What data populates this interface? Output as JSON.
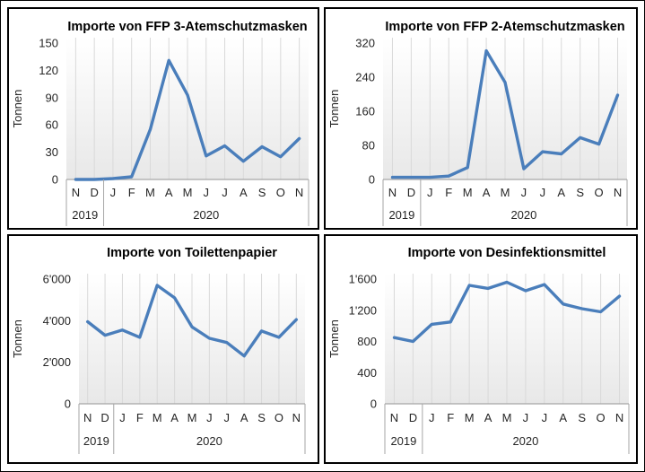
{
  "window": {
    "background": "#ffffff",
    "outer_border_color": "#000000",
    "panel_border_color": "#000000"
  },
  "palette": {
    "line_blue": "#4a7ebb",
    "gridline_gray": "#d9d9d9",
    "axis_gray": "#a6a6a6",
    "plot_gradient_bottom": "#e8e8e8"
  },
  "chart_data": [
    {
      "type": "line",
      "title": "Importe von FFP 3-Atemschutzmasken",
      "ylabel": "Tonnen",
      "ylabel_color": "#262626",
      "categories": [
        "N",
        "D",
        "J",
        "F",
        "M",
        "A",
        "M",
        "J",
        "J",
        "A",
        "S",
        "O",
        "N"
      ],
      "year_groups": [
        {
          "label": "2019",
          "span": 2
        },
        {
          "label": "2020",
          "span": 11
        }
      ],
      "values": [
        0,
        0,
        1,
        3,
        55,
        131,
        93,
        26,
        37,
        20,
        36,
        25,
        45
      ],
      "yticks": [
        0,
        30,
        60,
        90,
        120,
        150
      ],
      "ytick_labels": [
        "0",
        "30",
        "60",
        "90",
        "120",
        "150"
      ],
      "ylim": [
        0,
        150
      ],
      "grid": "vertical-category-lines",
      "legend": "none",
      "line_color": "#4a7ebb"
    },
    {
      "type": "line",
      "title": "Importe von FFP 2-Atemschutzmasken",
      "ylabel": "Tonnen",
      "ylabel_color": "#262626",
      "categories": [
        "N",
        "D",
        "J",
        "F",
        "M",
        "A",
        "M",
        "J",
        "J",
        "A",
        "S",
        "O",
        "N"
      ],
      "year_groups": [
        {
          "label": "2019",
          "span": 2
        },
        {
          "label": "2020",
          "span": 11
        }
      ],
      "values": [
        5,
        5,
        5,
        8,
        28,
        302,
        228,
        25,
        65,
        60,
        98,
        83,
        198
      ],
      "yticks": [
        0,
        80,
        160,
        240,
        320
      ],
      "ytick_labels": [
        "0",
        "80",
        "160",
        "240",
        "320"
      ],
      "ylim": [
        0,
        320
      ],
      "grid": "vertical-category-lines",
      "legend": "none",
      "line_color": "#4a7ebb"
    },
    {
      "type": "line",
      "title": "Importe von Toilettenpapier",
      "ylabel": "Tonnen",
      "ylabel_color": "#262626",
      "categories": [
        "N",
        "D",
        "J",
        "F",
        "M",
        "A",
        "M",
        "J",
        "J",
        "A",
        "S",
        "O",
        "N"
      ],
      "year_groups": [
        {
          "label": "2019",
          "span": 2
        },
        {
          "label": "2020",
          "span": 11
        }
      ],
      "values": [
        3950,
        3300,
        3550,
        3200,
        5700,
        5100,
        3700,
        3150,
        2950,
        2300,
        3500,
        3200,
        4050
      ],
      "yticks": [
        0,
        2000,
        4000,
        6000
      ],
      "ytick_labels": [
        "0",
        "2'000",
        "4'000",
        "6'000"
      ],
      "ylim": [
        0,
        6000
      ],
      "grid": "vertical-category-lines",
      "legend": "none",
      "line_color": "#4a7ebb"
    },
    {
      "type": "line",
      "title": "Importe von Desinfektionsmittel",
      "ylabel": "Tonnen",
      "ylabel_color": "#a6a6a6",
      "categories": [
        "N",
        "D",
        "J",
        "F",
        "M",
        "A",
        "M",
        "J",
        "J",
        "A",
        "S",
        "O",
        "N"
      ],
      "year_groups": [
        {
          "label": "2019",
          "span": 2
        },
        {
          "label": "2020",
          "span": 11
        }
      ],
      "values": [
        850,
        800,
        1020,
        1050,
        1520,
        1480,
        1560,
        1450,
        1530,
        1280,
        1220,
        1180,
        1380
      ],
      "yticks": [
        0,
        400,
        800,
        1200,
        1600
      ],
      "ytick_labels": [
        "0",
        "400",
        "800",
        "1'200",
        "1'600"
      ],
      "ylim": [
        0,
        1600
      ],
      "grid": "vertical-category-lines",
      "legend": "none",
      "line_color": "#4a7ebb"
    }
  ]
}
